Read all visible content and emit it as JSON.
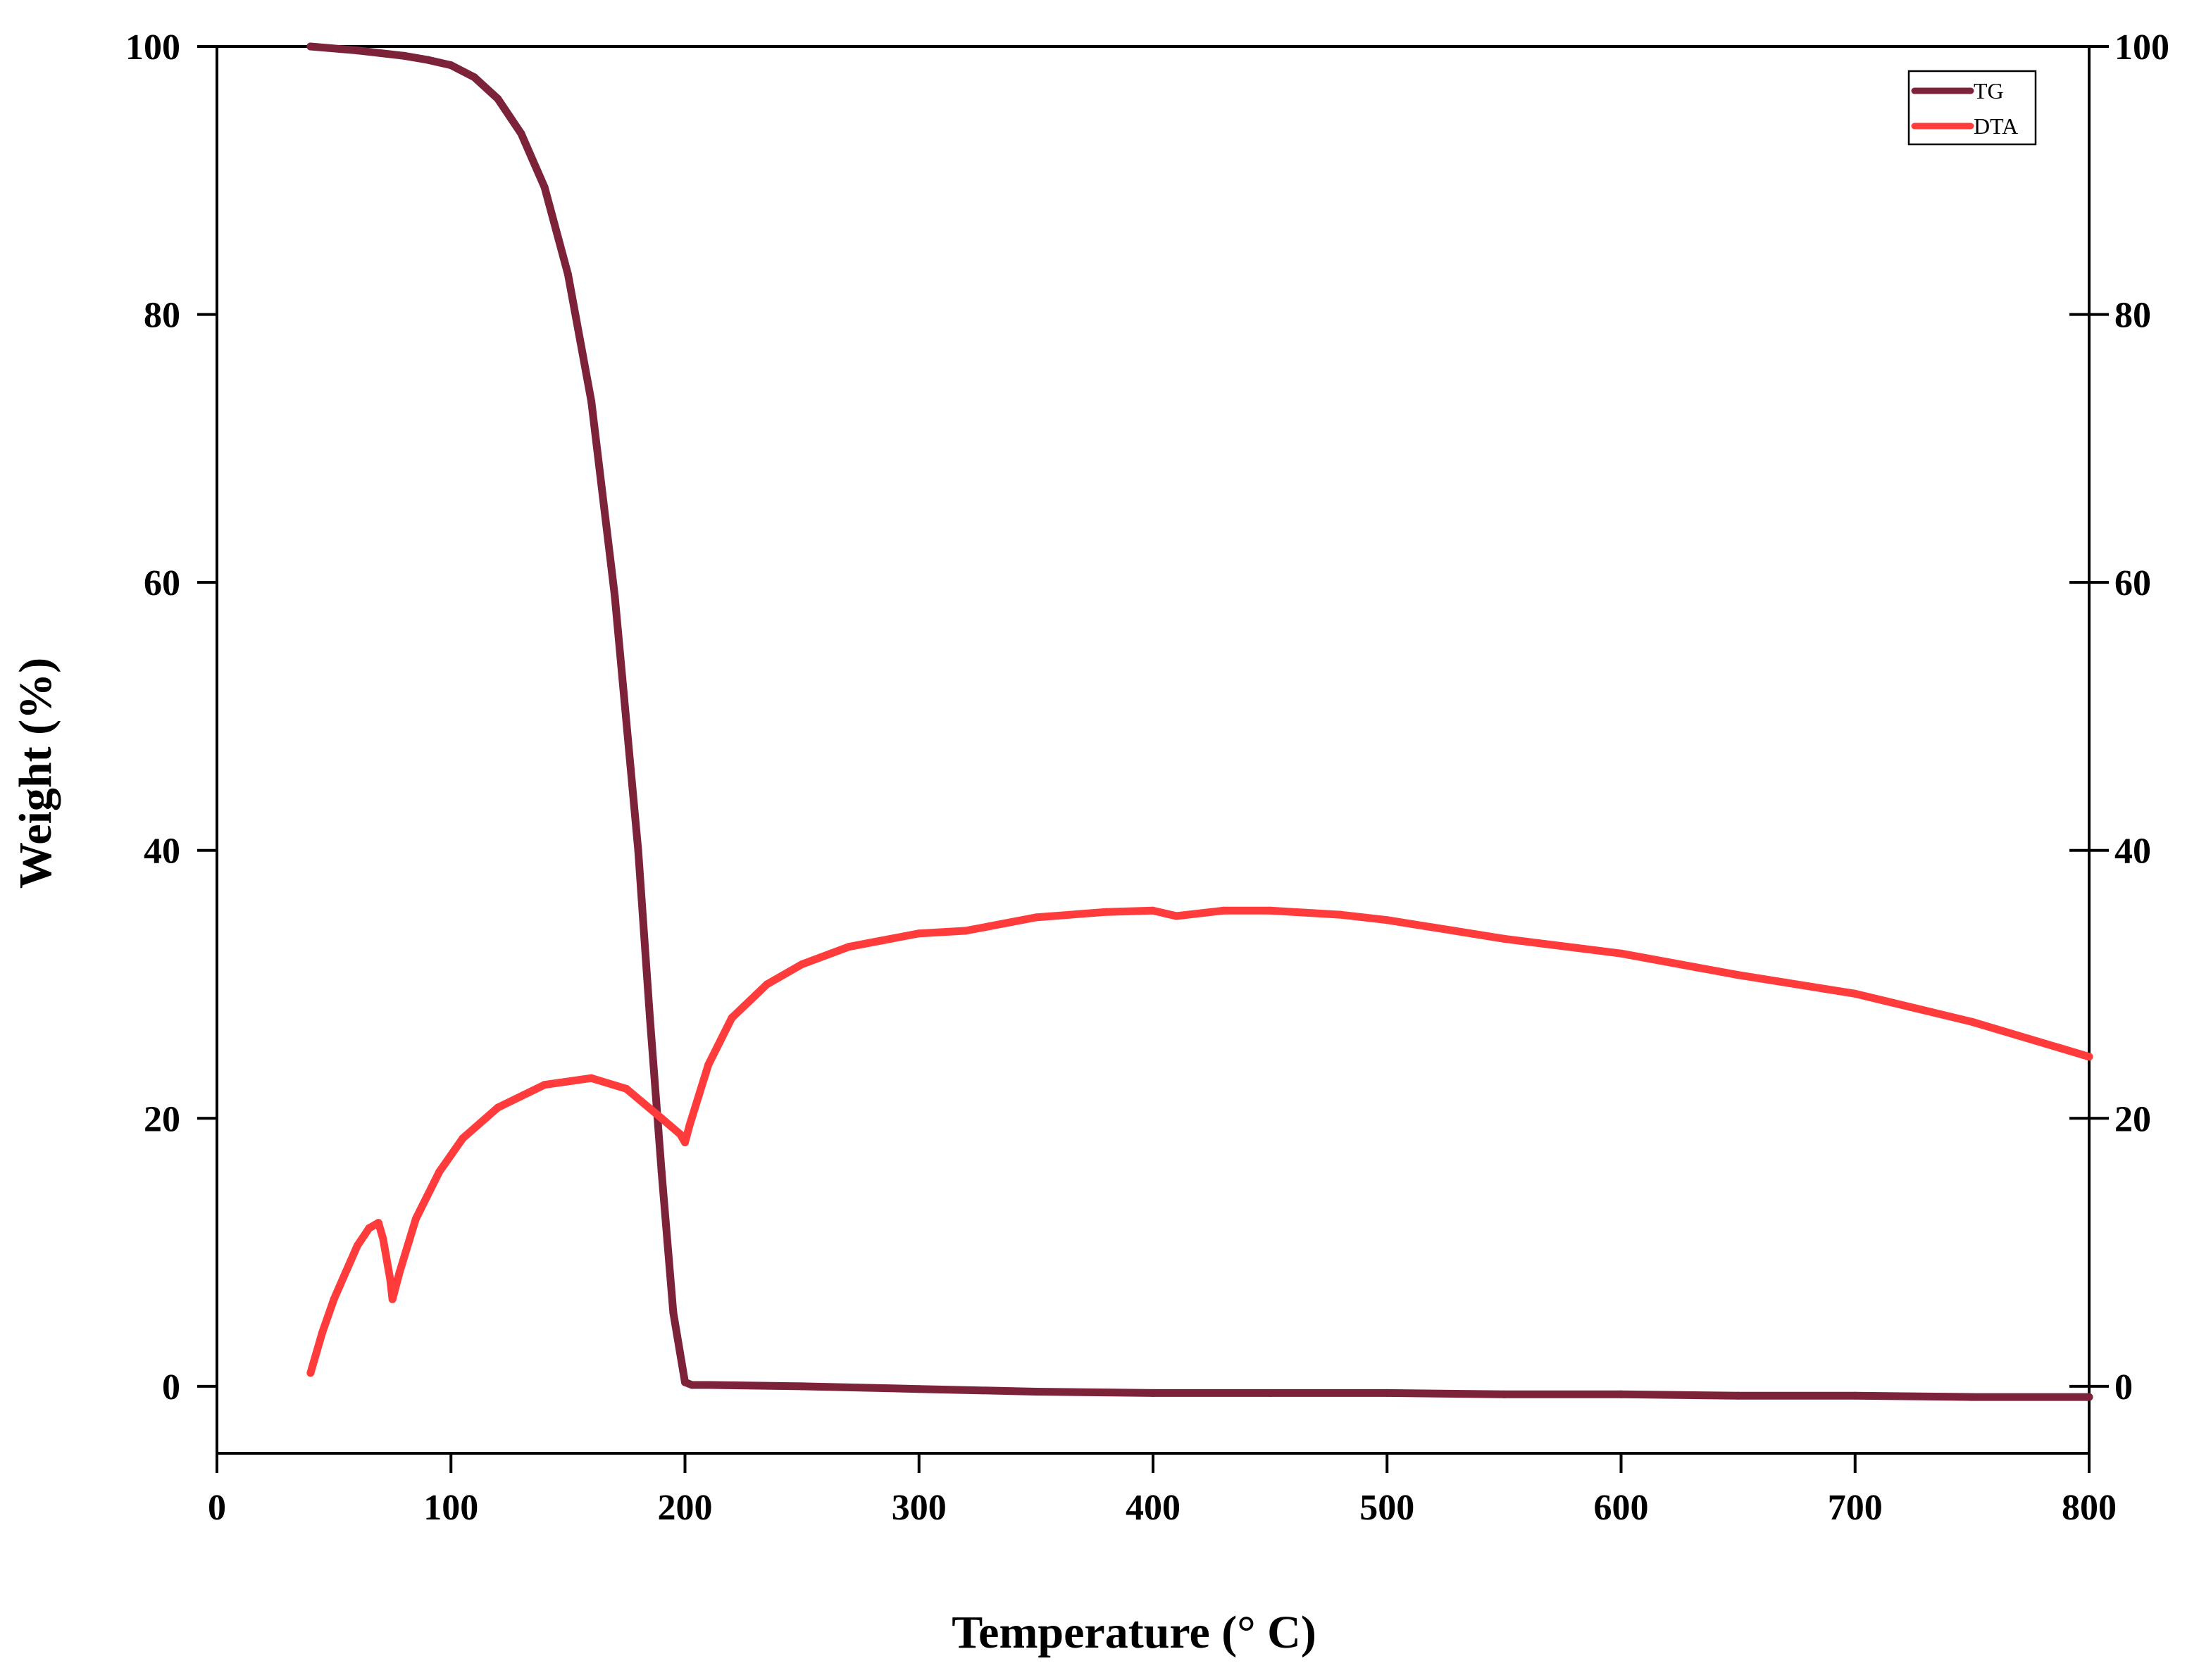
{
  "chart_data": {
    "type": "line",
    "xlabel": "Temperature (° C)",
    "ylabel": "Weight (%)",
    "xlim": [
      0,
      800
    ],
    "ylim": [
      -5,
      100
    ],
    "y2lim": [
      -5,
      100
    ],
    "xticks": [
      0,
      100,
      200,
      300,
      400,
      500,
      600,
      700,
      800
    ],
    "yticks": [
      0,
      20,
      40,
      60,
      80,
      100
    ],
    "y2ticks": [
      0,
      20,
      40,
      60,
      80,
      100
    ],
    "grid": false,
    "legend_position": "top-right",
    "series": [
      {
        "name": "TG",
        "color": "#7c2239",
        "x": [
          40,
          60,
          80,
          90,
          100,
          110,
          120,
          130,
          140,
          150,
          160,
          170,
          180,
          185,
          190,
          195,
          200,
          203,
          210,
          250,
          300,
          350,
          400,
          450,
          500,
          550,
          600,
          650,
          700,
          750,
          800
        ],
        "y": [
          100,
          99.7,
          99.3,
          99.0,
          98.6,
          97.7,
          96.1,
          93.5,
          89.5,
          83.0,
          73.5,
          59.0,
          40.0,
          27.5,
          16.0,
          5.5,
          0.3,
          0.1,
          0.1,
          0.0,
          -0.2,
          -0.4,
          -0.5,
          -0.5,
          -0.5,
          -0.6,
          -0.6,
          -0.7,
          -0.7,
          -0.8,
          -0.8
        ]
      },
      {
        "name": "DTA",
        "color": "#ff3b3b",
        "x": [
          40,
          45,
          50,
          55,
          60,
          65,
          69,
          71,
          74,
          75,
          78,
          85,
          95,
          105,
          120,
          140,
          160,
          175,
          190,
          198,
          200,
          202,
          210,
          220,
          235,
          250,
          270,
          300,
          320,
          350,
          380,
          400,
          410,
          430,
          450,
          480,
          500,
          550,
          600,
          650,
          700,
          750,
          800
        ],
        "y": [
          1,
          4,
          6.5,
          8.5,
          10.5,
          11.8,
          12.2,
          11,
          8,
          6.5,
          8.5,
          12.5,
          16,
          18.5,
          20.8,
          22.5,
          23.0,
          22.2,
          20.0,
          18.8,
          18.2,
          19.5,
          24,
          27.5,
          30.0,
          31.5,
          32.8,
          33.8,
          34.0,
          35.0,
          35.4,
          35.5,
          35.1,
          35.5,
          35.5,
          35.2,
          34.8,
          33.4,
          32.3,
          30.7,
          29.3,
          27.2,
          24.6
        ]
      }
    ]
  }
}
